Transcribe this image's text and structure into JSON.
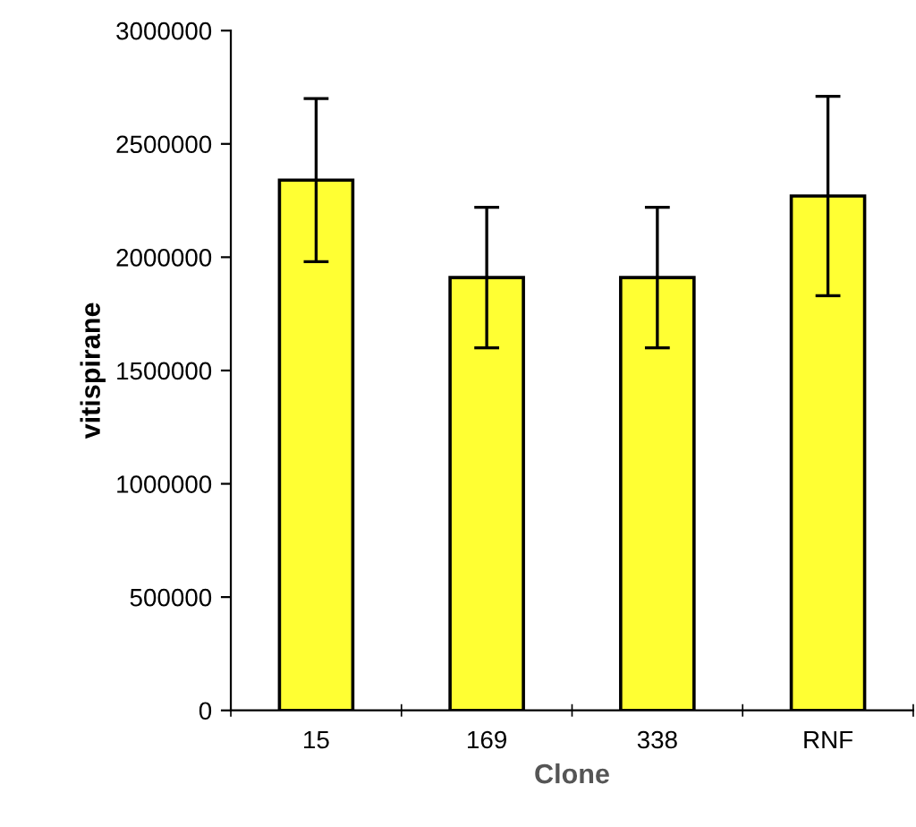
{
  "chart_data": {
    "type": "bar",
    "xlabel": "Clone",
    "ylabel": "vitispirane",
    "categories": [
      "15",
      "169",
      "338",
      "RNF"
    ],
    "values": [
      2340000,
      1910000,
      1910000,
      2270000
    ],
    "errors": [
      360000,
      310000,
      310000,
      440000
    ],
    "color": "#ffff33",
    "ylim": [
      0,
      3000000
    ],
    "yticks": [
      0,
      500000,
      1000000,
      1500000,
      2000000,
      2500000,
      3000000
    ],
    "grid": false,
    "legend": false
  }
}
